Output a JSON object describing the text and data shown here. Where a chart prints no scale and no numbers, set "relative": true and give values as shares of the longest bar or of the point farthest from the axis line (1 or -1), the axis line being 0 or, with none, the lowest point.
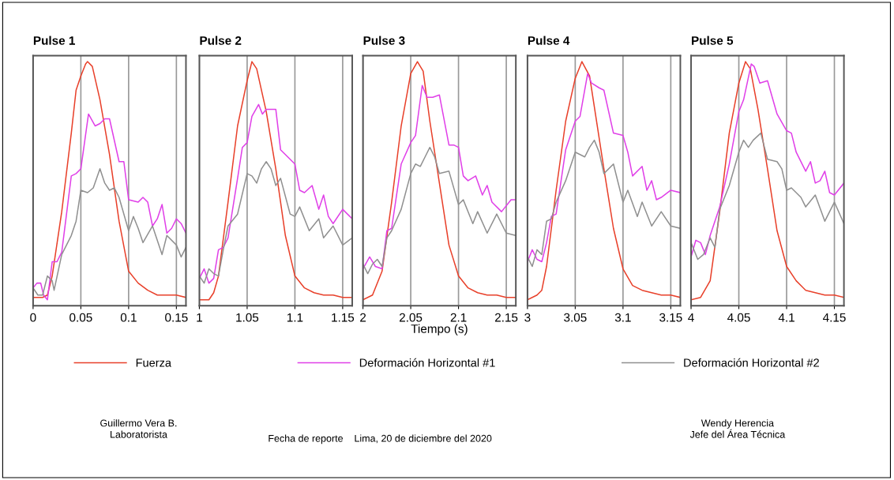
{
  "chart_data": [
    {
      "type": "line",
      "title": "Pulse 1",
      "relative": true,
      "xlim": [
        0,
        0.16
      ],
      "xticks": [
        0,
        0.05,
        0.1,
        0.15
      ],
      "grid": "x",
      "tick_labels": "x",
      "marker": "none",
      "line_style": "solid",
      "series": [
        {
          "color": "#e8402a",
          "x": [
            0,
            0.01,
            0.015,
            0.02,
            0.03,
            0.04,
            0.045,
            0.05,
            0.055,
            0.057,
            0.062,
            0.07,
            0.08,
            0.09,
            0.1,
            0.11,
            0.12,
            0.13,
            0.14,
            0.15,
            0.16
          ],
          "values": [
            0.01,
            0.01,
            0.02,
            0.1,
            0.37,
            0.7,
            0.88,
            0.94,
            0.99,
            1,
            0.98,
            0.84,
            0.61,
            0.33,
            0.12,
            0.07,
            0.04,
            0.02,
            0.02,
            0.02,
            0.01
          ]
        },
        {
          "color": "#e040e8",
          "x": [
            0,
            0.004,
            0.008,
            0.011,
            0.015,
            0.02,
            0.025,
            0.03,
            0.04,
            0.045,
            0.05,
            0.058,
            0.065,
            0.07,
            0.075,
            0.08,
            0.09,
            0.095,
            0.1,
            0.11,
            0.115,
            0.12,
            0.125,
            0.13,
            0.135,
            0.14,
            0.145,
            0.15,
            0.155,
            0.16
          ],
          "values": [
            0.05,
            0.07,
            0.07,
            0.02,
            0,
            0.16,
            0.16,
            0.2,
            0.52,
            0.53,
            0.55,
            0.78,
            0.73,
            0.74,
            0.76,
            0.76,
            0.58,
            0.58,
            0.42,
            0.41,
            0.43,
            0.41,
            0.31,
            0.34,
            0.4,
            0.28,
            0.3,
            0.34,
            0.32,
            0.28
          ]
        },
        {
          "color": "#909090",
          "x": [
            0,
            0.005,
            0.01,
            0.015,
            0.02,
            0.022,
            0.03,
            0.04,
            0.045,
            0.05,
            0.057,
            0.063,
            0.07,
            0.075,
            0.08,
            0.085,
            0.09,
            0.1,
            0.105,
            0.11,
            0.115,
            0.125,
            0.135,
            0.14,
            0.15,
            0.155,
            0.16
          ],
          "values": [
            0.05,
            0.02,
            0.02,
            0.1,
            0.08,
            0.04,
            0.19,
            0.27,
            0.33,
            0.46,
            0.45,
            0.47,
            0.55,
            0.49,
            0.46,
            0.47,
            0.43,
            0.29,
            0.35,
            0.3,
            0.24,
            0.31,
            0.19,
            0.27,
            0.23,
            0.18,
            0.22
          ]
        }
      ]
    },
    {
      "type": "line",
      "title": "Pulse 2",
      "relative": true,
      "xlim": [
        1,
        1.16
      ],
      "xticks": [
        1,
        1.05,
        1.1,
        1.15
      ],
      "grid": "x",
      "tick_labels": "x",
      "marker": "none",
      "line_style": "solid",
      "series": [
        {
          "color": "#e8402a",
          "x": [
            1,
            1.01,
            1.015,
            1.02,
            1.03,
            1.04,
            1.05,
            1.055,
            1.06,
            1.07,
            1.08,
            1.09,
            1.1,
            1.11,
            1.12,
            1.13,
            1.14,
            1.15,
            1.16
          ],
          "values": [
            0,
            0,
            0.03,
            0.1,
            0.41,
            0.73,
            0.92,
            1,
            0.97,
            0.79,
            0.55,
            0.27,
            0.1,
            0.05,
            0.03,
            0.02,
            0.02,
            0.01,
            0.01
          ]
        },
        {
          "color": "#e040e8",
          "x": [
            1,
            1.005,
            1.01,
            1.015,
            1.02,
            1.025,
            1.03,
            1.04,
            1.045,
            1.05,
            1.055,
            1.062,
            1.066,
            1.07,
            1.08,
            1.085,
            1.09,
            1.1,
            1.105,
            1.11,
            1.118,
            1.125,
            1.13,
            1.135,
            1.14,
            1.15,
            1.16
          ],
          "values": [
            0.09,
            0.13,
            0.07,
            0.09,
            0.21,
            0.22,
            0.26,
            0.51,
            0.64,
            0.66,
            0.77,
            0.82,
            0.78,
            0.8,
            0.8,
            0.63,
            0.61,
            0.57,
            0.46,
            0.45,
            0.48,
            0.38,
            0.44,
            0.35,
            0.32,
            0.38,
            0.34
          ]
        },
        {
          "color": "#909090",
          "x": [
            1,
            1.005,
            1.01,
            1.015,
            1.02,
            1.025,
            1.03,
            1.04,
            1.05,
            1.055,
            1.06,
            1.065,
            1.07,
            1.075,
            1.08,
            1.085,
            1.095,
            1.1,
            1.105,
            1.115,
            1.125,
            1.13,
            1.14,
            1.15,
            1.16
          ],
          "values": [
            0.1,
            0.07,
            0.13,
            0.11,
            0.1,
            0.21,
            0.31,
            0.36,
            0.53,
            0.52,
            0.49,
            0.55,
            0.58,
            0.55,
            0.48,
            0.51,
            0.36,
            0.35,
            0.39,
            0.29,
            0.34,
            0.26,
            0.31,
            0.23,
            0.26
          ]
        }
      ]
    },
    {
      "type": "line",
      "title": "Pulse 3",
      "xlabel": "Tiempo (s)",
      "relative": true,
      "xlim": [
        2,
        2.16
      ],
      "xticks": [
        2,
        2.05,
        2.1,
        2.15
      ],
      "grid": "x",
      "tick_labels": "x",
      "marker": "none",
      "line_style": "solid",
      "legend": "bottom",
      "annotations": [
        "Guillermo Vera B.\nLaboratorista",
        "Fecha de reporte    Lima, 20 de diciembre del 2020",
        "Wendy Herencia\nJefe del Área Técnica"
      ],
      "series": [
        {
          "name": "Fuerza",
          "color": "#e8402a",
          "x": [
            2,
            2.01,
            2.02,
            2.03,
            2.04,
            2.05,
            2.057,
            2.063,
            2.07,
            2.08,
            2.09,
            2.1,
            2.11,
            2.12,
            2.13,
            2.14,
            2.15,
            2.16
          ],
          "values": [
            0,
            0.02,
            0.12,
            0.41,
            0.73,
            0.95,
            1,
            0.96,
            0.75,
            0.49,
            0.23,
            0.1,
            0.05,
            0.03,
            0.02,
            0.02,
            0.01,
            0.01
          ]
        },
        {
          "name": "Deformación Horizontal #1",
          "color": "#e040e8",
          "x": [
            2,
            2.007,
            2.013,
            2.02,
            2.025,
            2.03,
            2.04,
            2.05,
            2.055,
            2.062,
            2.067,
            2.073,
            2.08,
            2.09,
            2.095,
            2.1,
            2.105,
            2.11,
            2.118,
            2.125,
            2.13,
            2.135,
            2.145,
            2.155,
            2.16
          ],
          "values": [
            0.13,
            0.18,
            0.14,
            0.13,
            0.29,
            0.3,
            0.57,
            0.66,
            0.69,
            0.9,
            0.85,
            0.85,
            0.86,
            0.65,
            0.65,
            0.64,
            0.52,
            0.5,
            0.52,
            0.44,
            0.48,
            0.41,
            0.37,
            0.42,
            0.42
          ]
        },
        {
          "name": "Deformación Horizontal #2",
          "color": "#909090",
          "x": [
            2,
            2.005,
            2.01,
            2.015,
            2.02,
            2.025,
            2.03,
            2.04,
            2.05,
            2.055,
            2.06,
            2.065,
            2.07,
            2.075,
            2.08,
            2.09,
            2.1,
            2.105,
            2.115,
            2.12,
            2.13,
            2.14,
            2.15,
            2.16
          ],
          "values": [
            0.15,
            0.11,
            0.15,
            0.17,
            0.14,
            0.26,
            0.29,
            0.38,
            0.53,
            0.57,
            0.56,
            0.6,
            0.64,
            0.6,
            0.53,
            0.54,
            0.4,
            0.42,
            0.32,
            0.37,
            0.28,
            0.36,
            0.28,
            0.27
          ]
        }
      ]
    },
    {
      "type": "line",
      "title": "Pulse 4",
      "relative": true,
      "xlim": [
        3,
        3.16
      ],
      "xticks": [
        3,
        3.05,
        3.1,
        3.15
      ],
      "grid": "x",
      "tick_labels": "x",
      "marker": "none",
      "line_style": "solid",
      "series": [
        {
          "color": "#e8402a",
          "x": [
            3,
            3.01,
            3.015,
            3.02,
            3.03,
            3.04,
            3.05,
            3.057,
            3.065,
            3.07,
            3.08,
            3.09,
            3.1,
            3.11,
            3.12,
            3.13,
            3.14,
            3.15,
            3.16
          ],
          "values": [
            0,
            0.02,
            0.04,
            0.14,
            0.46,
            0.75,
            0.93,
            1,
            0.94,
            0.81,
            0.55,
            0.3,
            0.13,
            0.06,
            0.04,
            0.03,
            0.02,
            0.02,
            0.01
          ]
        },
        {
          "color": "#e040e8",
          "x": [
            3,
            3.005,
            3.01,
            3.015,
            3.02,
            3.025,
            3.03,
            3.04,
            3.05,
            3.055,
            3.063,
            3.067,
            3.075,
            3.08,
            3.09,
            3.1,
            3.105,
            3.11,
            3.12,
            3.125,
            3.13,
            3.135,
            3.14,
            3.15,
            3.16
          ],
          "values": [
            0.16,
            0.21,
            0.17,
            0.16,
            0.24,
            0.35,
            0.36,
            0.63,
            0.75,
            0.77,
            0.95,
            0.91,
            0.89,
            0.88,
            0.7,
            0.69,
            0.62,
            0.52,
            0.56,
            0.46,
            0.5,
            0.42,
            0.43,
            0.46,
            0.45
          ]
        },
        {
          "color": "#909090",
          "x": [
            3,
            3.005,
            3.01,
            3.015,
            3.02,
            3.025,
            3.03,
            3.04,
            3.05,
            3.055,
            3.06,
            3.065,
            3.07,
            3.075,
            3.08,
            3.09,
            3.1,
            3.105,
            3.115,
            3.12,
            3.13,
            3.14,
            3.15,
            3.16
          ],
          "values": [
            0.18,
            0.14,
            0.21,
            0.19,
            0.33,
            0.34,
            0.41,
            0.5,
            0.62,
            0.61,
            0.6,
            0.64,
            0.67,
            0.62,
            0.53,
            0.57,
            0.41,
            0.46,
            0.35,
            0.41,
            0.31,
            0.37,
            0.31,
            0.3
          ]
        }
      ]
    },
    {
      "type": "line",
      "title": "Pulse 5",
      "relative": true,
      "xlim": [
        4,
        4.16
      ],
      "xticks": [
        4,
        4.05,
        4.1,
        4.15
      ],
      "grid": "x",
      "tick_labels": "x",
      "marker": "none",
      "line_style": "solid",
      "series": [
        {
          "color": "#e8402a",
          "x": [
            4,
            4.01,
            4.02,
            4.03,
            4.04,
            4.05,
            4.057,
            4.062,
            4.07,
            4.08,
            4.09,
            4.1,
            4.11,
            4.12,
            4.13,
            4.14,
            4.15,
            4.16
          ],
          "values": [
            0,
            0.01,
            0.08,
            0.37,
            0.7,
            0.91,
            1,
            0.97,
            0.8,
            0.55,
            0.29,
            0.14,
            0.08,
            0.04,
            0.03,
            0.02,
            0.02,
            0.01
          ]
        },
        {
          "color": "#e040e8",
          "x": [
            4,
            4.005,
            4.01,
            4.015,
            4.02,
            4.03,
            4.04,
            4.05,
            4.055,
            4.063,
            4.066,
            4.072,
            4.08,
            4.09,
            4.1,
            4.105,
            4.11,
            4.12,
            4.125,
            4.13,
            4.135,
            4.14,
            4.145,
            4.15,
            4.16
          ],
          "values": [
            0.18,
            0.25,
            0.24,
            0.19,
            0.27,
            0.39,
            0.57,
            0.79,
            0.84,
            0.99,
            0.98,
            0.91,
            0.92,
            0.78,
            0.71,
            0.7,
            0.62,
            0.54,
            0.58,
            0.49,
            0.5,
            0.54,
            0.45,
            0.44,
            0.49
          ]
        },
        {
          "color": "#909090",
          "x": [
            4,
            4.007,
            4.013,
            4.02,
            4.025,
            4.03,
            4.04,
            4.05,
            4.055,
            4.06,
            4.065,
            4.073,
            4.08,
            4.09,
            4.095,
            4.1,
            4.105,
            4.115,
            4.12,
            4.13,
            4.14,
            4.15,
            4.16
          ],
          "values": [
            0.24,
            0.17,
            0.19,
            0.26,
            0.22,
            0.38,
            0.48,
            0.62,
            0.67,
            0.64,
            0.67,
            0.7,
            0.59,
            0.58,
            0.55,
            0.46,
            0.47,
            0.43,
            0.39,
            0.44,
            0.33,
            0.41,
            0.32
          ]
        }
      ]
    }
  ]
}
